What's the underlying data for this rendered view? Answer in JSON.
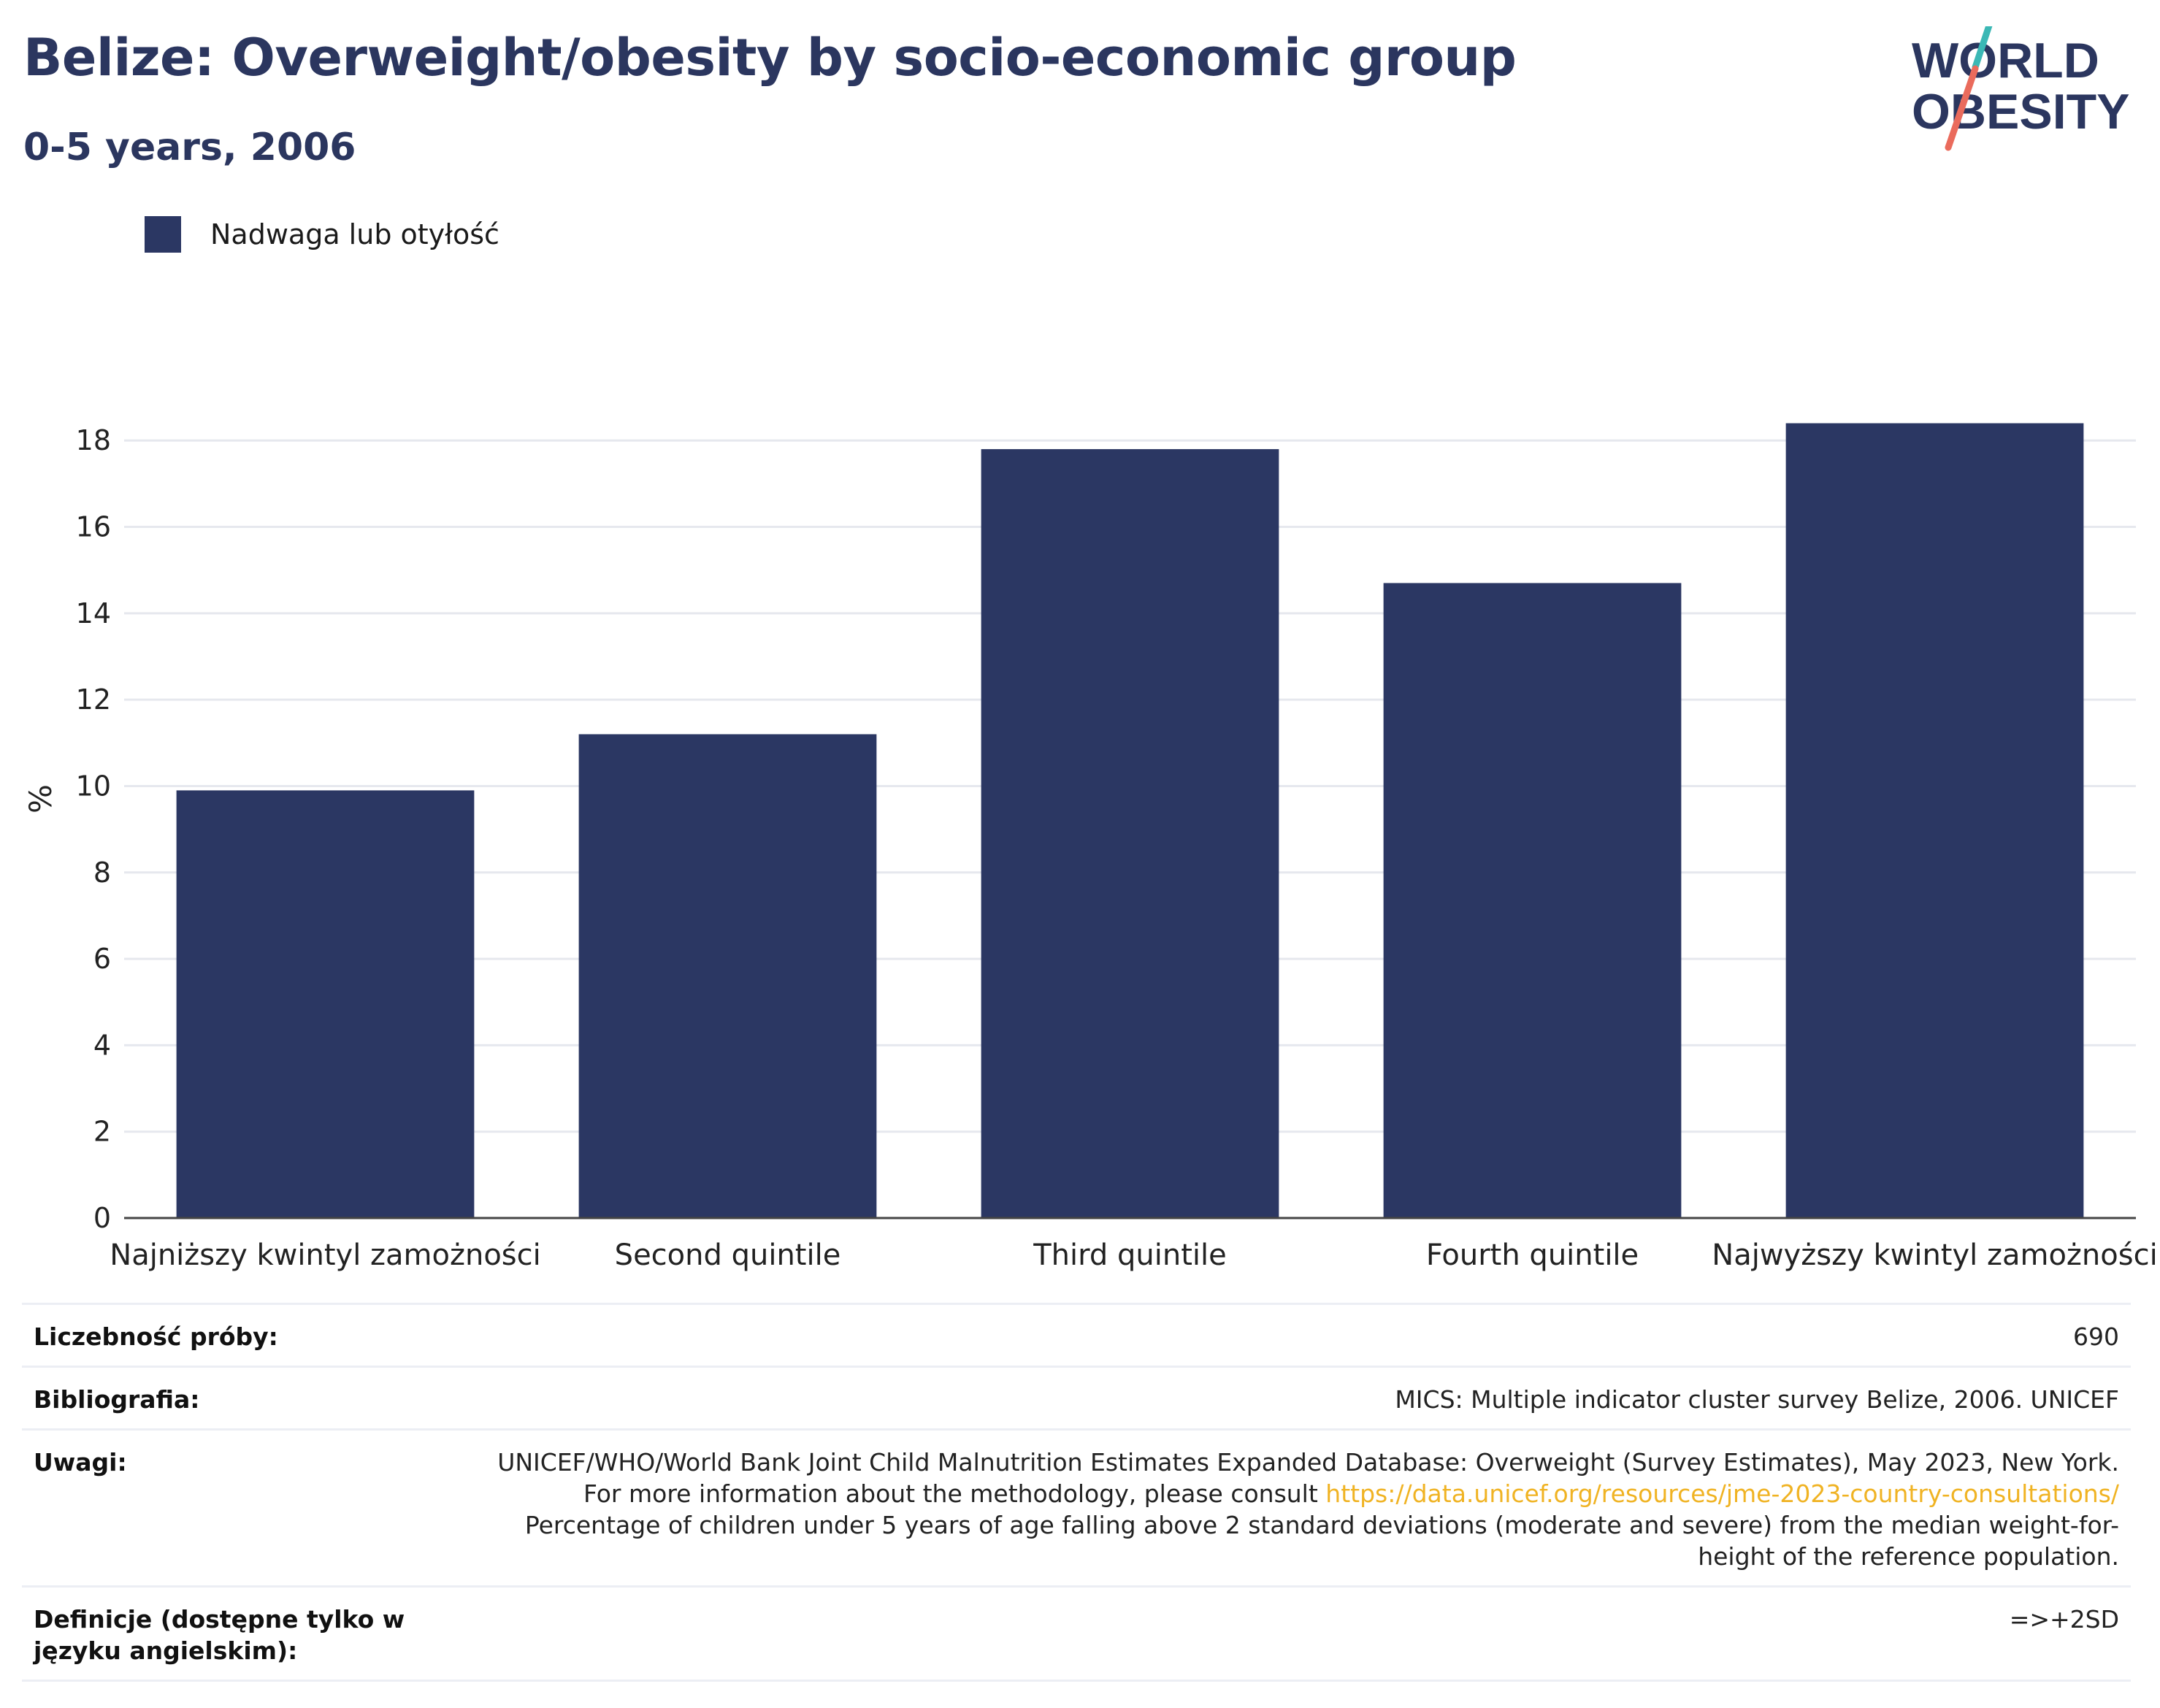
{
  "header": {
    "title": "Belize: Overweight/obesity by socio-economic group",
    "subtitle": "0-5 years, 2006"
  },
  "logo": {
    "line1": "WORLD",
    "line2": "OBESITY",
    "colors": {
      "text": "#2b365f",
      "teal": "#3bb8b5",
      "coral": "#ea6b5c"
    }
  },
  "legend": {
    "label": "Nadwaga lub otyłość",
    "color": "#2b3763"
  },
  "chart_data": {
    "type": "bar",
    "categories": [
      "Najniższy kwintyl zamożności",
      "Second quintile",
      "Third quintile",
      "Fourth quintile",
      "Najwyższy kwintyl zamożności"
    ],
    "series": [
      {
        "name": "Nadwaga lub otyłość",
        "values": [
          9.9,
          11.2,
          17.8,
          14.7,
          18.4
        ],
        "color": "#2b3763"
      }
    ],
    "ylabel": "%",
    "ylim": [
      0,
      18.9
    ],
    "yticks": [
      0,
      2,
      4,
      6,
      8,
      10,
      12,
      14,
      16,
      18
    ],
    "grid": true,
    "legend_position": "top-left"
  },
  "meta": {
    "rows": [
      {
        "key": "Liczebność próby:",
        "value": "690"
      },
      {
        "key": "Bibliografia:",
        "value": "MICS: Multiple indicator cluster survey Belize, 2006. UNICEF"
      },
      {
        "key": "Uwagi:",
        "value_pre": "UNICEF/WHO/World Bank Joint Child Malnutrition Estimates Expanded Database: Overweight (Survey Estimates), May 2023, New York. For more information about the methodology, please consult ",
        "value_link": "https://data.unicef.org/resources/jme-2023-country-consultations/",
        "value_post": "Percentage of children under 5 years of age falling above 2 standard deviations (moderate and severe) from the median weight-for-height of the reference population."
      },
      {
        "key": "Definicje (dostępne tylko w języku angielskim):",
        "value": "=>+2SD"
      }
    ]
  }
}
